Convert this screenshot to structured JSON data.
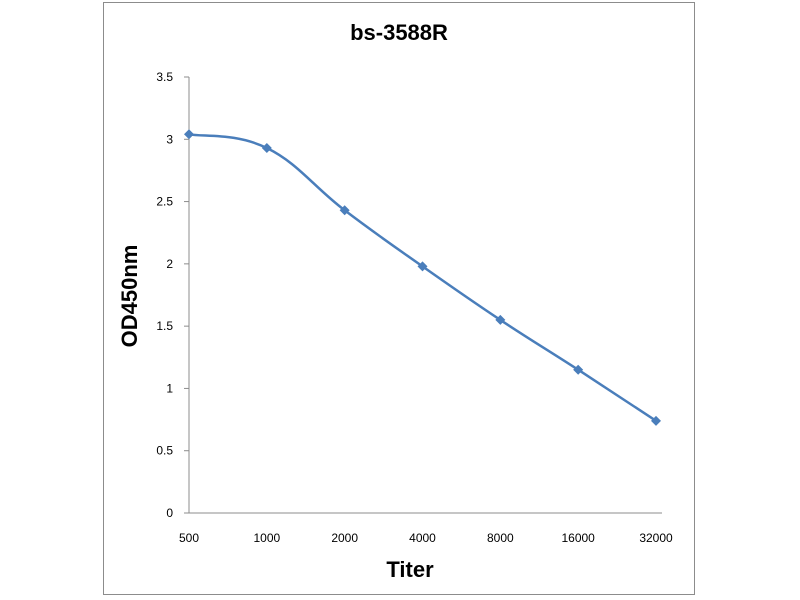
{
  "chart_data": {
    "type": "line",
    "title": "bs-3588R",
    "xlabel": "Titer",
    "ylabel": "OD450nm",
    "categories": [
      "500",
      "1000",
      "2000",
      "4000",
      "8000",
      "16000",
      "32000"
    ],
    "series": [
      {
        "values": [
          3.04,
          2.93,
          2.43,
          1.98,
          1.55,
          1.15,
          0.74
        ]
      }
    ],
    "yticks": [
      "0",
      "0.5",
      "1",
      "1.5",
      "2",
      "2.5",
      "3",
      "3.5"
    ],
    "ylim": [
      0,
      3.5
    ],
    "grid": false,
    "legend": "none",
    "colors": {
      "series": "#4a7ebb",
      "axis": "#8c8c8c",
      "frame": "#8c8c8c"
    },
    "marker": "diamond"
  }
}
